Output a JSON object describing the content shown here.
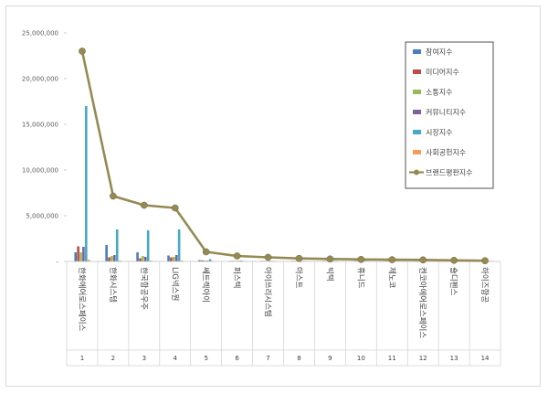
{
  "chart_data": {
    "type": "bar",
    "title": "",
    "xlabel": "",
    "ylabel": "",
    "ylim": [
      0,
      25000000
    ],
    "yticks": [
      0,
      5000000,
      10000000,
      15000000,
      20000000,
      25000000
    ],
    "ytick_labels": [
      "-",
      "5,000,000",
      "10,000,000",
      "15,000,000",
      "20,000,000",
      "25,000,000"
    ],
    "grid": false,
    "legend_position": "top-right",
    "ranks": [
      "1",
      "2",
      "3",
      "4",
      "5",
      "6",
      "7",
      "8",
      "9",
      "10",
      "11",
      "12",
      "13",
      "14"
    ],
    "categories": [
      "한화에어로스페이스",
      "한화시스템",
      "한국항공우주",
      "LIG넥스원",
      "쎄트렉아이",
      "퍼스텍",
      "아이쓰리시스템",
      "아스트",
      "빅텍",
      "휴니드",
      "제노코",
      "켄코아에어로스페이스",
      "숄디펜스",
      "하이즈항공"
    ],
    "series": [
      {
        "name": "참여지수",
        "kind": "bar",
        "color": "#4a7ebb",
        "values": [
          1000000,
          1800000,
          1000000,
          650000,
          150000,
          60000,
          40000,
          30000,
          25000,
          20000,
          15000,
          15000,
          10000,
          10000
        ]
      },
      {
        "name": "미디어지수",
        "kind": "bar",
        "color": "#be4b48",
        "values": [
          1650000,
          450000,
          350000,
          450000,
          120000,
          30000,
          20000,
          15000,
          12000,
          10000,
          8000,
          8000,
          6000,
          5000
        ]
      },
      {
        "name": "소통지수",
        "kind": "bar",
        "color": "#98b954",
        "values": [
          1000000,
          600000,
          600000,
          500000,
          100000,
          30000,
          20000,
          15000,
          12000,
          10000,
          8000,
          8000,
          6000,
          5000
        ]
      },
      {
        "name": "커뮤니티지수",
        "kind": "bar",
        "color": "#7d60a0",
        "values": [
          1600000,
          700000,
          500000,
          700000,
          80000,
          20000,
          15000,
          10000,
          8000,
          8000,
          6000,
          6000,
          5000,
          4000
        ]
      },
      {
        "name": "시장지수",
        "kind": "bar",
        "color": "#46aac5",
        "values": [
          17000000,
          3500000,
          3400000,
          3500000,
          250000,
          100000,
          60000,
          40000,
          30000,
          30000,
          20000,
          20000,
          15000,
          10000
        ]
      },
      {
        "name": "사회공헌지수",
        "kind": "bar",
        "color": "#f59d56",
        "values": [
          200000,
          100000,
          100000,
          100000,
          30000,
          10000,
          8000,
          6000,
          5000,
          4000,
          3000,
          3000,
          2000,
          2000
        ]
      },
      {
        "name": "브랜드평판지수",
        "kind": "line",
        "color": "#948a54",
        "values": [
          23000000,
          7150000,
          6150000,
          5850000,
          1050000,
          600000,
          450000,
          330000,
          270000,
          220000,
          190000,
          170000,
          120000,
          80000
        ]
      }
    ]
  }
}
